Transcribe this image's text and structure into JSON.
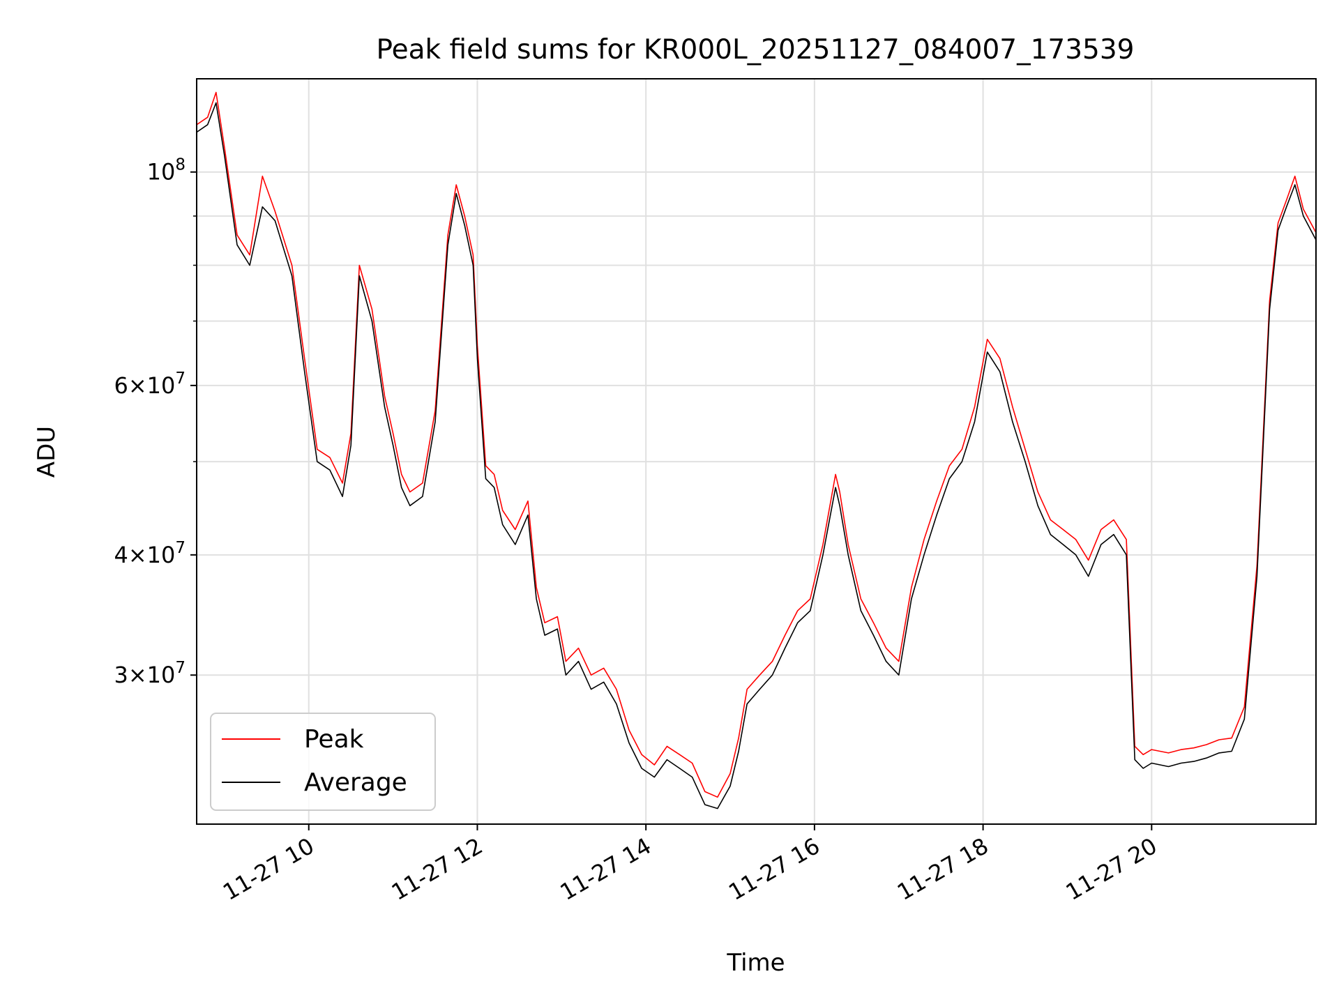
{
  "chart_data": {
    "type": "line",
    "title": "Peak field sums for KR000L_20251127_084007_173539",
    "xlabel": "Time",
    "ylabel": "ADU",
    "yscale": "log",
    "grid": true,
    "legend_position": "lower-left",
    "xlim": [
      8.67,
      21.95
    ],
    "ylim": [
      21000000,
      125000000
    ],
    "x_units": "hours since 2025-11-27 00:00",
    "x_ticks": [
      {
        "value": 10,
        "label": "11-27 10"
      },
      {
        "value": 12,
        "label": "11-27 12"
      },
      {
        "value": 14,
        "label": "11-27 14"
      },
      {
        "value": 16,
        "label": "11-27 16"
      },
      {
        "value": 18,
        "label": "11-27 18"
      },
      {
        "value": 20,
        "label": "11-27 20"
      }
    ],
    "y_ticks": [
      {
        "value": 30000000,
        "mantissa": "3",
        "exponent": "7"
      },
      {
        "value": 40000000,
        "mantissa": "4",
        "exponent": "7"
      },
      {
        "value": 60000000,
        "mantissa": "6",
        "exponent": "7"
      },
      {
        "value": 100000000,
        "mantissa": "10",
        "exponent": "8"
      }
    ],
    "y_minor_ticks": [
      50000000,
      70000000,
      80000000,
      90000000
    ],
    "series": [
      {
        "name": "Peak",
        "color": "#ff0000"
      },
      {
        "name": "Average",
        "color": "#000000"
      }
    ],
    "x": [
      8.67,
      8.8,
      8.9,
      9.0,
      9.15,
      9.3,
      9.45,
      9.6,
      9.8,
      9.95,
      10.1,
      10.25,
      10.4,
      10.5,
      10.6,
      10.75,
      10.9,
      11.0,
      11.1,
      11.2,
      11.35,
      11.5,
      11.65,
      11.75,
      11.85,
      11.95,
      12.0,
      12.1,
      12.2,
      12.3,
      12.45,
      12.6,
      12.7,
      12.8,
      12.95,
      13.05,
      13.2,
      13.35,
      13.5,
      13.65,
      13.8,
      13.95,
      14.1,
      14.25,
      14.4,
      14.55,
      14.7,
      14.85,
      15.0,
      15.1,
      15.2,
      15.35,
      15.5,
      15.65,
      15.8,
      15.95,
      16.1,
      16.25,
      16.3,
      16.4,
      16.55,
      16.7,
      16.85,
      17.0,
      17.15,
      17.3,
      17.45,
      17.6,
      17.75,
      17.9,
      18.05,
      18.2,
      18.35,
      18.5,
      18.65,
      18.8,
      18.95,
      19.1,
      19.25,
      19.4,
      19.55,
      19.7,
      19.8,
      19.9,
      20.0,
      20.1,
      20.2,
      20.35,
      20.5,
      20.65,
      20.8,
      20.95,
      21.1,
      21.25,
      21.4,
      21.5,
      21.6,
      21.7,
      21.8,
      21.95
    ],
    "average": [
      110000000,
      112000000,
      118000000,
      104000000,
      84000000,
      80000000,
      92000000,
      89000000,
      78000000,
      62000000,
      50000000,
      49000000,
      46000000,
      52000000,
      78000000,
      70000000,
      57000000,
      52000000,
      47000000,
      45000000,
      46000000,
      55000000,
      84000000,
      95000000,
      88000000,
      80000000,
      64000000,
      48000000,
      47000000,
      43000000,
      41000000,
      44000000,
      36000000,
      33000000,
      33500000,
      30000000,
      31000000,
      29000000,
      29500000,
      28000000,
      25500000,
      24000000,
      23500000,
      24500000,
      24000000,
      23500000,
      22000000,
      21800000,
      23000000,
      25000000,
      28000000,
      29000000,
      30000000,
      32000000,
      34000000,
      35000000,
      40000000,
      47000000,
      45000000,
      40000000,
      35000000,
      33000000,
      31000000,
      30000000,
      36000000,
      40000000,
      44000000,
      48000000,
      50000000,
      55000000,
      65000000,
      62000000,
      55000000,
      50000000,
      45000000,
      42000000,
      41000000,
      40000000,
      38000000,
      41000000,
      42000000,
      40000000,
      24500000,
      24000000,
      24300000,
      24200000,
      24100000,
      24300000,
      24400000,
      24600000,
      24900000,
      25000000,
      27000000,
      38000000,
      72000000,
      87000000,
      92000000,
      97000000,
      90000000,
      85000000
    ],
    "peak": [
      112000000,
      114000000,
      121000000,
      106000000,
      86000000,
      82000000,
      99000000,
      91000000,
      80000000,
      64000000,
      51500000,
      50500000,
      47500000,
      53500000,
      80000000,
      72000000,
      58500000,
      53500000,
      48500000,
      46500000,
      47500000,
      56500000,
      86000000,
      97000000,
      90000000,
      82000000,
      66000000,
      49500000,
      48500000,
      44500000,
      42500000,
      45500000,
      37000000,
      34000000,
      34500000,
      31000000,
      32000000,
      30000000,
      30500000,
      29000000,
      26300000,
      24800000,
      24200000,
      25300000,
      24800000,
      24300000,
      22700000,
      22400000,
      23700000,
      25800000,
      29000000,
      30000000,
      31000000,
      33000000,
      35000000,
      36000000,
      41000000,
      48500000,
      46500000,
      41000000,
      36000000,
      34000000,
      32000000,
      31000000,
      37000000,
      41500000,
      45500000,
      49500000,
      51500000,
      57000000,
      67000000,
      64000000,
      57000000,
      51500000,
      46500000,
      43500000,
      42500000,
      41500000,
      39500000,
      42500000,
      43500000,
      41500000,
      25300000,
      24800000,
      25100000,
      25000000,
      24900000,
      25100000,
      25200000,
      25400000,
      25700000,
      25800000,
      27800000,
      39000000,
      73500000,
      88500000,
      93500000,
      99000000,
      91500000,
      86500000
    ]
  }
}
